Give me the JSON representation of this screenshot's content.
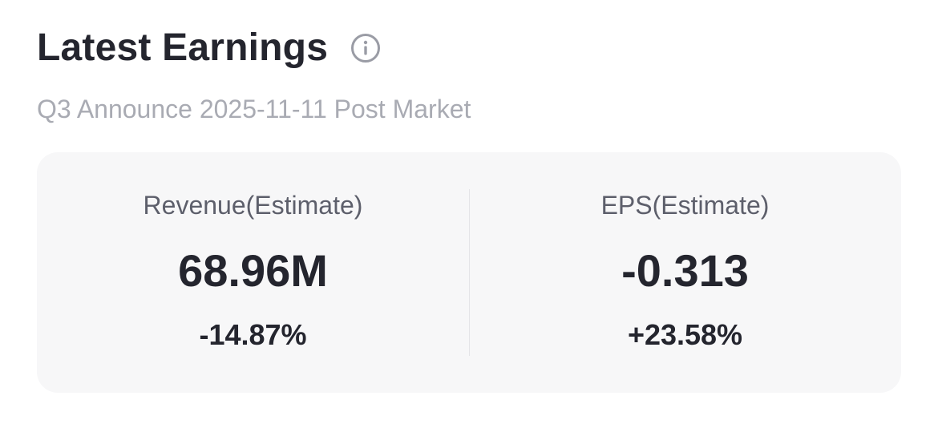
{
  "header": {
    "title": "Latest Earnings",
    "info_icon": "info-circle-icon"
  },
  "announcement": {
    "text": "Q3 Announce 2025-11-11 Post Market"
  },
  "metrics": {
    "revenue": {
      "label": "Revenue(Estimate)",
      "value": "68.96M",
      "change": "-14.87%"
    },
    "eps": {
      "label": "EPS(Estimate)",
      "value": "-0.313",
      "change": "+23.58%"
    }
  },
  "colors": {
    "title": "#24252e",
    "subtitle": "#a9abb3",
    "card_bg": "#f7f7f8",
    "label": "#5d5f6b",
    "icon": "#9a9ca5"
  }
}
